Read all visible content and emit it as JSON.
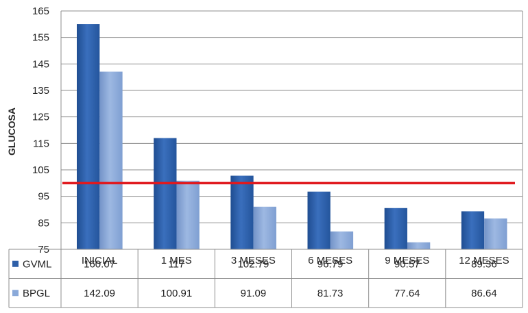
{
  "chart_data": {
    "type": "bar",
    "title": "",
    "xlabel": "",
    "ylabel": "GLUCOSA",
    "ylim": [
      75,
      165
    ],
    "yticks": [
      75,
      85,
      95,
      105,
      115,
      125,
      135,
      145,
      155,
      165
    ],
    "grid": true,
    "reference_line": {
      "y": 100,
      "color": "#e0191e"
    },
    "categories": [
      "INICIAL",
      "1 MES",
      "3 MESES",
      "6 MESES",
      "9 MESES",
      "12 MESES"
    ],
    "series": [
      {
        "name": "GVML",
        "color": "#2e5fa8",
        "values": [
          160.07,
          117,
          102.79,
          96.79,
          90.57,
          89.36
        ],
        "display": [
          "160.07",
          "117",
          "102.79",
          "96.79",
          "90.57",
          "89.36"
        ]
      },
      {
        "name": "BPGL",
        "color": "#8aa9d9",
        "values": [
          142.09,
          100.91,
          91.09,
          81.73,
          77.64,
          86.64
        ],
        "display": [
          "142.09",
          "100.91",
          "91.09",
          "81.73",
          "77.64",
          "86.64"
        ]
      }
    ],
    "legend": "data-table"
  }
}
